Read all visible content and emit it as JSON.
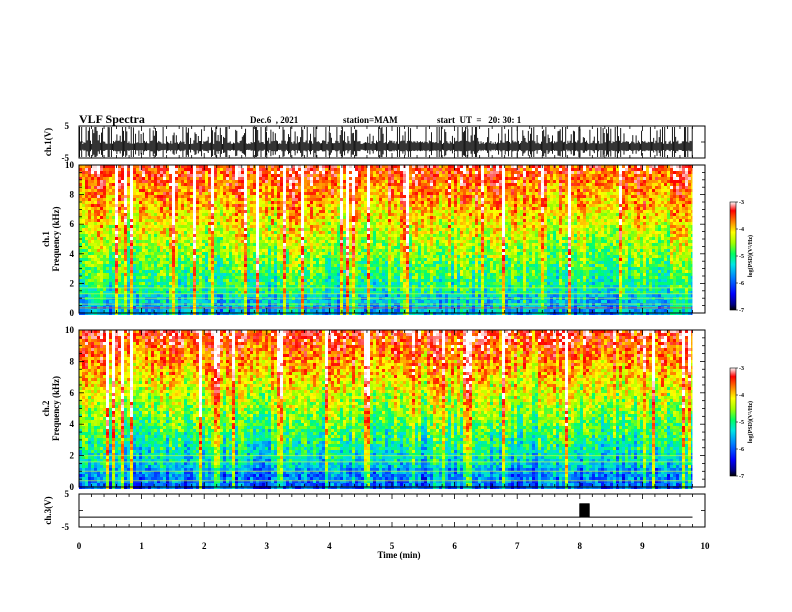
{
  "header": {
    "title": "VLF Spectra",
    "date": "Dec.6  , 2021",
    "station": "station=MAM",
    "start_ut": "start  UT  =   20: 30: 1"
  },
  "colors": {
    "colormap": [
      "#000080",
      "#0000ff",
      "#0080ff",
      "#00e5e5",
      "#00ff80",
      "#80ff00",
      "#ffff00",
      "#ff8000",
      "#ff0000",
      "#ffffff"
    ]
  },
  "chart_data": [
    {
      "type": "line",
      "panel": "ch1-waveform",
      "ylabel": "ch.1(V)",
      "y_ticks": [
        "5",
        "-5"
      ],
      "ylim": [
        -5,
        5
      ],
      "description_values": {
        "signal": "dense impulsive bursts across full record"
      }
    },
    {
      "type": "heatmap",
      "panel": "ch1-spectrogram",
      "ylabel_line1": "ch.1",
      "ylabel_line2": "Frequency  (kHz)",
      "y_ticks": [
        "0",
        "2",
        "4",
        "6",
        "8",
        "10"
      ],
      "ylim": [
        0,
        10
      ],
      "xlim": [
        0,
        10
      ],
      "colorbar": {
        "label": "log(PSD)(V²/Hz)",
        "ticks": [
          "-3",
          "-4",
          "-5",
          "-6",
          "-7"
        ],
        "range": [
          -7,
          -3
        ]
      }
    },
    {
      "type": "heatmap",
      "panel": "ch2-spectrogram",
      "ylabel_line1": "ch.2",
      "ylabel_line2": "Frequency  (kHz)",
      "y_ticks": [
        "0",
        "2",
        "4",
        "6",
        "8",
        "10"
      ],
      "ylim": [
        0,
        10
      ],
      "xlim": [
        0,
        10
      ],
      "colorbar": {
        "label": "log(PSD)(V²/Hz)",
        "ticks": [
          "-3",
          "-4",
          "-5",
          "-6",
          "-7"
        ],
        "range": [
          -7,
          -3
        ]
      }
    },
    {
      "type": "line",
      "panel": "ch3-waveform",
      "ylabel": "ch.3(V)",
      "y_ticks": [
        "5",
        "-5"
      ],
      "ylim": [
        -5,
        5
      ],
      "x": [
        0,
        8.0,
        8.0,
        8.15,
        8.15,
        9.8
      ],
      "y": [
        -2,
        -2,
        2,
        2,
        -2,
        -2
      ]
    }
  ],
  "x_axis": {
    "label": "Time  (min)",
    "ticks": [
      "0",
      "1",
      "2",
      "3",
      "4",
      "5",
      "6",
      "7",
      "8",
      "9",
      "10"
    ],
    "xlim": [
      0,
      10
    ],
    "data_end": 9.8
  }
}
